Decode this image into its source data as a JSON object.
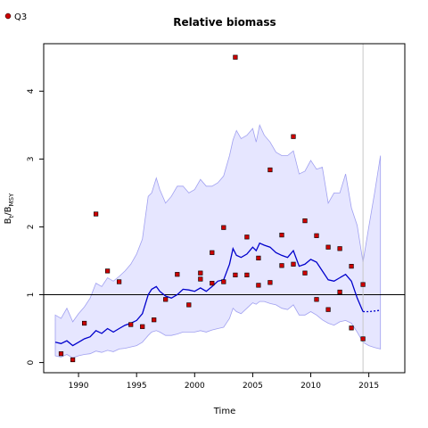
{
  "chart_data": {
    "type": "line",
    "title": "Relative biomass",
    "xlabel": "Time",
    "ylabel_main": "B",
    "ylabel_sub1": "t",
    "ylabel_mid": "/B",
    "ylabel_sub2": "MSY",
    "xlim": [
      1987.0,
      2018.1
    ],
    "ylim": [
      -0.15,
      4.7
    ],
    "x_ticks": [
      1990,
      1995,
      2000,
      2005,
      2010,
      2015
    ],
    "y_ticks": [
      0,
      1,
      2,
      3,
      4
    ],
    "reference_line_y": 1,
    "vertical_line_x": 2014.5,
    "legend": {
      "position": "top-left",
      "entries": [
        {
          "label": "Q3",
          "color": "#cc0000"
        }
      ]
    },
    "colors": {
      "band": "#e6e6ff",
      "band_edge": "#a0a0f0",
      "median": "#0000cc",
      "points": "#cc0000"
    },
    "median": {
      "x": [
        1988,
        1988.5,
        1989,
        1989.5,
        1990,
        1990.5,
        1991,
        1991.5,
        1992,
        1992.5,
        1993,
        1993.5,
        1994,
        1994.5,
        1995,
        1995.5,
        1996,
        1996.3,
        1996.7,
        1997,
        1997.5,
        1998,
        1998.5,
        1999,
        1999.5,
        2000,
        2000.5,
        2001,
        2001.5,
        2002,
        2002.5,
        2003,
        2003.3,
        2003.6,
        2004,
        2004.5,
        2005,
        2005.3,
        2005.6,
        2006,
        2006.5,
        2007,
        2007.5,
        2008,
        2008.5,
        2009,
        2009.5,
        2010,
        2010.5,
        2011,
        2011.5,
        2012,
        2012.5,
        2013,
        2013.5,
        2014,
        2014.5
      ],
      "y": [
        0.3,
        0.28,
        0.32,
        0.25,
        0.3,
        0.35,
        0.38,
        0.47,
        0.43,
        0.5,
        0.45,
        0.5,
        0.55,
        0.58,
        0.62,
        0.72,
        1.0,
        1.08,
        1.12,
        1.05,
        0.98,
        0.95,
        1.0,
        1.08,
        1.07,
        1.05,
        1.1,
        1.05,
        1.12,
        1.2,
        1.22,
        1.45,
        1.68,
        1.58,
        1.55,
        1.6,
        1.7,
        1.65,
        1.76,
        1.73,
        1.7,
        1.62,
        1.58,
        1.55,
        1.65,
        1.42,
        1.45,
        1.52,
        1.48,
        1.35,
        1.22,
        1.2,
        1.25,
        1.3,
        1.2,
        0.95,
        0.75
      ]
    },
    "projection": {
      "x": [
        2014.5,
        2015,
        2015.5,
        2016
      ],
      "y": [
        0.75,
        0.75,
        0.76,
        0.77
      ]
    },
    "band_upper": {
      "x": [
        1988,
        1988.5,
        1989,
        1989.5,
        1990,
        1990.5,
        1991,
        1991.5,
        1992,
        1992.5,
        1993,
        1993.5,
        1994,
        1994.5,
        1995,
        1995.5,
        1996,
        1996.3,
        1996.7,
        1997,
        1997.5,
        1998,
        1998.5,
        1999,
        1999.5,
        2000,
        2000.5,
        2001,
        2001.5,
        2002,
        2002.5,
        2003,
        2003.3,
        2003.6,
        2004,
        2004.5,
        2005,
        2005.3,
        2005.6,
        2006,
        2006.5,
        2007,
        2007.5,
        2008,
        2008.5,
        2009,
        2009.5,
        2010,
        2010.5,
        2011,
        2011.5,
        2012,
        2012.5,
        2013,
        2013.5,
        2014,
        2014.5,
        2015,
        2015.5,
        2016
      ],
      "y": [
        0.7,
        0.65,
        0.8,
        0.6,
        0.72,
        0.82,
        0.95,
        1.17,
        1.12,
        1.25,
        1.2,
        1.27,
        1.35,
        1.45,
        1.6,
        1.82,
        2.45,
        2.5,
        2.72,
        2.55,
        2.35,
        2.45,
        2.6,
        2.6,
        2.5,
        2.55,
        2.7,
        2.6,
        2.6,
        2.65,
        2.75,
        3.05,
        3.28,
        3.42,
        3.3,
        3.35,
        3.45,
        3.25,
        3.5,
        3.35,
        3.25,
        3.1,
        3.05,
        3.05,
        3.12,
        2.78,
        2.82,
        2.98,
        2.85,
        2.88,
        2.35,
        2.5,
        2.5,
        2.78,
        2.28,
        2.02,
        1.48,
        2.0,
        2.5,
        3.05
      ]
    },
    "band_lower": {
      "x": [
        1988,
        1988.5,
        1989,
        1989.5,
        1990,
        1990.5,
        1991,
        1991.5,
        1992,
        1992.5,
        1993,
        1993.5,
        1994,
        1994.5,
        1995,
        1995.5,
        1996,
        1996.3,
        1996.7,
        1997,
        1997.5,
        1998,
        1998.5,
        1999,
        1999.5,
        2000,
        2000.5,
        2001,
        2001.5,
        2002,
        2002.5,
        2003,
        2003.3,
        2003.6,
        2004,
        2004.5,
        2005,
        2005.3,
        2005.6,
        2006,
        2006.5,
        2007,
        2007.5,
        2008,
        2008.5,
        2009,
        2009.5,
        2010,
        2010.5,
        2011,
        2011.5,
        2012,
        2012.5,
        2013,
        2013.5,
        2014,
        2014.5,
        2015,
        2015.5,
        2016
      ],
      "y": [
        0.1,
        0.08,
        0.12,
        0.07,
        0.1,
        0.12,
        0.13,
        0.17,
        0.15,
        0.18,
        0.16,
        0.2,
        0.21,
        0.23,
        0.25,
        0.3,
        0.4,
        0.45,
        0.47,
        0.45,
        0.4,
        0.4,
        0.42,
        0.45,
        0.45,
        0.45,
        0.47,
        0.45,
        0.48,
        0.5,
        0.52,
        0.65,
        0.8,
        0.75,
        0.72,
        0.8,
        0.88,
        0.86,
        0.9,
        0.9,
        0.87,
        0.85,
        0.8,
        0.78,
        0.85,
        0.7,
        0.7,
        0.75,
        0.7,
        0.63,
        0.58,
        0.55,
        0.6,
        0.62,
        0.58,
        0.45,
        0.3,
        0.25,
        0.22,
        0.2
      ]
    },
    "points": {
      "x": [
        1988.5,
        1989.5,
        1990.5,
        1991.5,
        1992.5,
        1993.5,
        1994.5,
        1995.5,
        1996.5,
        1997.5,
        1998.5,
        1999.5,
        2000.5,
        2000.5,
        2001.5,
        2001.5,
        2002.5,
        2002.5,
        2003.5,
        2003.5,
        2004.5,
        2004.5,
        2005.5,
        2005.5,
        2006.5,
        2006.5,
        2007.5,
        2007.5,
        2008.5,
        2008.5,
        2009.5,
        2009.5,
        2010.5,
        2010.5,
        2011.5,
        2011.5,
        2012.5,
        2012.5,
        2013.5,
        2013.5,
        2014.5,
        2014.5
      ],
      "y": [
        0.13,
        0.04,
        0.58,
        2.19,
        1.35,
        1.19,
        0.56,
        0.53,
        0.63,
        0.93,
        1.3,
        0.85,
        1.32,
        1.23,
        1.62,
        1.17,
        1.99,
        1.19,
        4.5,
        1.29,
        1.85,
        1.29,
        1.54,
        1.14,
        2.84,
        1.18,
        1.88,
        1.43,
        3.33,
        1.45,
        2.09,
        1.32,
        1.87,
        0.93,
        1.7,
        0.78,
        1.68,
        1.04,
        1.42,
        0.51,
        1.15,
        0.35
      ]
    }
  }
}
